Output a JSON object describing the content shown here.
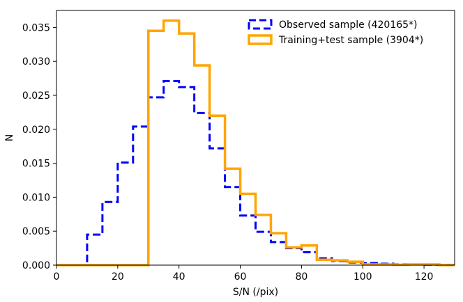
{
  "chart_data": {
    "type": "histogram-step",
    "title": "",
    "xlabel": "S/N (/pix)",
    "ylabel": "N",
    "xlim": [
      0,
      130
    ],
    "ylim": [
      0,
      0.0375
    ],
    "x_ticks": [
      0,
      20,
      40,
      60,
      80,
      100,
      120
    ],
    "x_tick_labels": [
      "0",
      "20",
      "40",
      "60",
      "80",
      "100",
      "120"
    ],
    "y_ticks": [
      0.0,
      0.005,
      0.01,
      0.015,
      0.02,
      0.025,
      0.03,
      0.035
    ],
    "y_tick_labels": [
      "0.000",
      "0.005",
      "0.010",
      "0.015",
      "0.020",
      "0.025",
      "0.030",
      "0.035"
    ],
    "legend_position": "top-right",
    "series": [
      {
        "name": "Observed sample (420165*)",
        "color": "#0000ff",
        "linestyle": "dashed",
        "bin_edges": [
          0,
          10,
          15,
          20,
          25,
          30,
          35,
          40,
          45,
          50,
          55,
          60,
          65,
          70,
          75,
          80,
          85,
          90,
          95,
          100,
          105,
          110,
          115,
          120,
          125,
          130
        ],
        "values": [
          0.0,
          0.0045,
          0.0093,
          0.0151,
          0.0204,
          0.0247,
          0.0271,
          0.0262,
          0.0224,
          0.0172,
          0.0115,
          0.0073,
          0.0049,
          0.0034,
          0.0025,
          0.0019,
          0.001,
          0.0006,
          0.0004,
          0.0003,
          0.0002,
          0.0001,
          0.0001,
          5e-05,
          3e-05
        ]
      },
      {
        "name": "Training+test sample (3904*)",
        "color": "#ffa500",
        "linestyle": "solid",
        "bin_edges": [
          0,
          30,
          35,
          40,
          45,
          50,
          55,
          60,
          65,
          70,
          75,
          80,
          85,
          90,
          95,
          100,
          105,
          110,
          115,
          120,
          125,
          130
        ],
        "values": [
          0.0,
          0.0345,
          0.036,
          0.0341,
          0.0294,
          0.022,
          0.0142,
          0.0105,
          0.0074,
          0.0047,
          0.0026,
          0.0029,
          0.0008,
          0.0007,
          0.0005,
          0.0001,
          0.0001,
          5e-05,
          0.0001,
          0.0001,
          0.0
        ]
      }
    ]
  }
}
